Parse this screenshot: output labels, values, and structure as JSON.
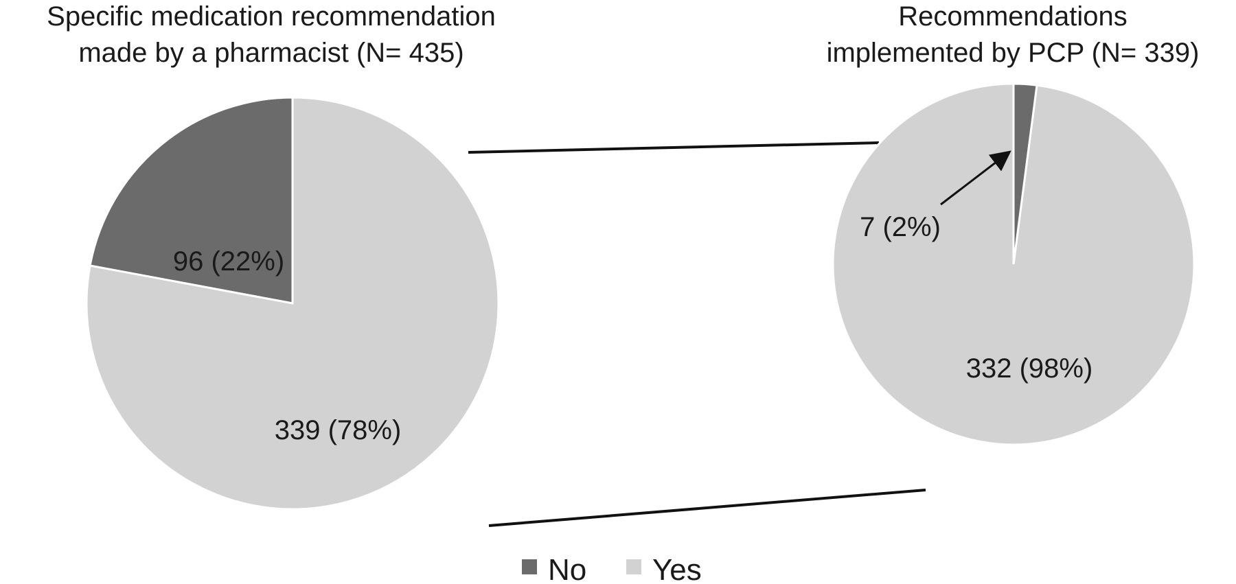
{
  "chart_data": [
    {
      "type": "pie",
      "title_lines": [
        "Specific medication recommendation",
        "made by a pharmacist  (N= 435)"
      ],
      "slices": [
        {
          "category": "No",
          "value": 96,
          "label": "96 (22%)"
        },
        {
          "category": "Yes",
          "value": 339,
          "label": "339 (78%)"
        }
      ],
      "start": "12 o'clock",
      "direction": "counterclockwise"
    },
    {
      "type": "pie",
      "title_lines": [
        "Recommendations",
        "implemented by PCP (N= 339)"
      ],
      "slices": [
        {
          "category": "No",
          "value": 7,
          "label": "7 (2%)"
        },
        {
          "category": "Yes",
          "value": 332,
          "label": "332 (98%)"
        }
      ],
      "start": "12 o'clock",
      "direction": "clockwise"
    }
  ],
  "legend": {
    "placement": "bottom-center",
    "items": [
      {
        "name": "No",
        "color": "#6b6b6b"
      },
      {
        "name": "Yes",
        "color": "#d2d2d2"
      }
    ]
  },
  "colors": {
    "No": "#6b6b6b",
    "Yes": "#d2d2d2",
    "connector": "#111111",
    "slice_border": "#ffffff"
  }
}
